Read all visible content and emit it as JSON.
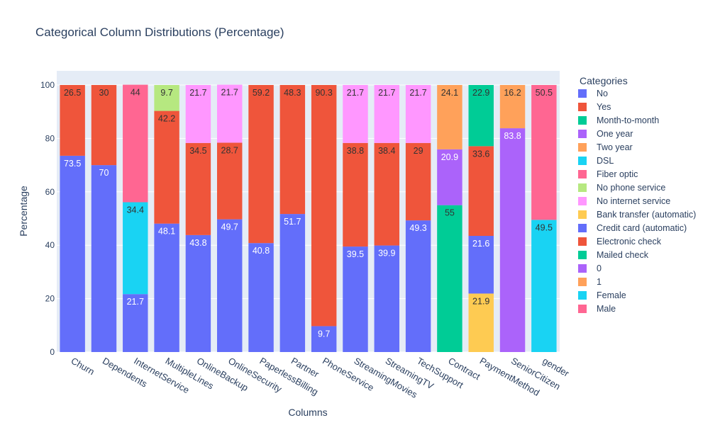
{
  "chart_data": {
    "type": "bar",
    "barmode": "stack",
    "title": "Categorical Column Distributions (Percentage)",
    "xlabel": "Columns",
    "ylabel": "Percentage",
    "ylim": [
      0,
      100
    ],
    "yticks": [
      0,
      20,
      40,
      60,
      80,
      100
    ],
    "grid": true,
    "legend": {
      "title": "Categories",
      "position": "right"
    },
    "categories": [
      "Churn",
      "Dependents",
      "InternetService",
      "MultipleLines",
      "OnlineBackup",
      "OnlineSecurity",
      "PaperlessBilling",
      "Partner",
      "PhoneService",
      "StreamingMovies",
      "StreamingTV",
      "TechSupport",
      "Contract",
      "PaymentMethod",
      "SeniorCitizen",
      "gender"
    ],
    "series": [
      {
        "name": "No",
        "color": "#636efa",
        "values": [
          73.5,
          70,
          21.7,
          48.1,
          43.8,
          49.7,
          40.8,
          51.7,
          9.7,
          39.5,
          39.9,
          49.3,
          null,
          null,
          null,
          null
        ],
        "labels": [
          "73.5",
          "70",
          "21.7",
          "48.1",
          "43.8",
          "49.7",
          "40.8",
          "51.7",
          "9.7",
          "39.5",
          "39.9",
          "49.3",
          null,
          null,
          null,
          null
        ]
      },
      {
        "name": "Yes",
        "color": "#ef553b",
        "values": [
          26.5,
          30,
          null,
          42.2,
          34.5,
          28.7,
          59.2,
          48.3,
          90.3,
          38.8,
          38.4,
          29,
          null,
          null,
          null,
          null
        ],
        "labels": [
          "26.5",
          "30",
          null,
          "42.2",
          "34.5",
          "28.7",
          "59.2",
          "48.3",
          "90.3",
          "38.8",
          "38.4",
          "29",
          null,
          null,
          null,
          null
        ]
      },
      {
        "name": "Month-to-month",
        "color": "#00cc96",
        "values": [
          null,
          null,
          null,
          null,
          null,
          null,
          null,
          null,
          null,
          null,
          null,
          null,
          55,
          null,
          null,
          null
        ],
        "labels": [
          null,
          null,
          null,
          null,
          null,
          null,
          null,
          null,
          null,
          null,
          null,
          null,
          "55",
          null,
          null,
          null
        ]
      },
      {
        "name": "One year",
        "color": "#ab63fa",
        "values": [
          null,
          null,
          null,
          null,
          null,
          null,
          null,
          null,
          null,
          null,
          null,
          null,
          20.9,
          null,
          null,
          null
        ],
        "labels": [
          null,
          null,
          null,
          null,
          null,
          null,
          null,
          null,
          null,
          null,
          null,
          null,
          "20.9",
          null,
          null,
          null
        ]
      },
      {
        "name": "Two year",
        "color": "#ffa15a",
        "values": [
          null,
          null,
          null,
          null,
          null,
          null,
          null,
          null,
          null,
          null,
          null,
          null,
          24.1,
          null,
          null,
          null
        ],
        "labels": [
          null,
          null,
          null,
          null,
          null,
          null,
          null,
          null,
          null,
          null,
          null,
          null,
          "24.1",
          null,
          null,
          null
        ]
      },
      {
        "name": "DSL",
        "color": "#19d3f3",
        "values": [
          null,
          null,
          34.4,
          null,
          null,
          null,
          null,
          null,
          null,
          null,
          null,
          null,
          null,
          null,
          null,
          null
        ],
        "labels": [
          null,
          null,
          "34.4",
          null,
          null,
          null,
          null,
          null,
          null,
          null,
          null,
          null,
          null,
          null,
          null,
          null
        ]
      },
      {
        "name": "Fiber optic",
        "color": "#ff6692",
        "values": [
          null,
          null,
          44,
          null,
          null,
          null,
          null,
          null,
          null,
          null,
          null,
          null,
          null,
          null,
          null,
          null
        ],
        "labels": [
          null,
          null,
          "44",
          null,
          null,
          null,
          null,
          null,
          null,
          null,
          null,
          null,
          null,
          null,
          null,
          null
        ]
      },
      {
        "name": "No phone service",
        "color": "#b6e880",
        "values": [
          null,
          null,
          null,
          9.7,
          null,
          null,
          null,
          null,
          null,
          null,
          null,
          null,
          null,
          null,
          null,
          null
        ],
        "labels": [
          null,
          null,
          null,
          "9.7",
          null,
          null,
          null,
          null,
          null,
          null,
          null,
          null,
          null,
          null,
          null,
          null
        ]
      },
      {
        "name": "No internet service",
        "color": "#ff97ff",
        "values": [
          null,
          null,
          null,
          null,
          21.7,
          21.7,
          null,
          null,
          null,
          21.7,
          21.7,
          21.7,
          null,
          null,
          null,
          null
        ],
        "labels": [
          null,
          null,
          null,
          null,
          "21.7",
          "21.7",
          null,
          null,
          null,
          "21.7",
          "21.7",
          "21.7",
          null,
          null,
          null,
          null
        ]
      },
      {
        "name": "Bank transfer (automatic)",
        "color": "#fecb52",
        "values": [
          null,
          null,
          null,
          null,
          null,
          null,
          null,
          null,
          null,
          null,
          null,
          null,
          null,
          21.9,
          null,
          null
        ],
        "labels": [
          null,
          null,
          null,
          null,
          null,
          null,
          null,
          null,
          null,
          null,
          null,
          null,
          null,
          "21.9",
          null,
          null
        ]
      },
      {
        "name": "Credit card (automatic)",
        "color": "#636efa",
        "values": [
          null,
          null,
          null,
          null,
          null,
          null,
          null,
          null,
          null,
          null,
          null,
          null,
          null,
          21.6,
          null,
          null
        ],
        "labels": [
          null,
          null,
          null,
          null,
          null,
          null,
          null,
          null,
          null,
          null,
          null,
          null,
          null,
          "21.6",
          null,
          null
        ]
      },
      {
        "name": "Electronic check",
        "color": "#ef553b",
        "values": [
          null,
          null,
          null,
          null,
          null,
          null,
          null,
          null,
          null,
          null,
          null,
          null,
          null,
          33.6,
          null,
          null
        ],
        "labels": [
          null,
          null,
          null,
          null,
          null,
          null,
          null,
          null,
          null,
          null,
          null,
          null,
          null,
          "33.6",
          null,
          null
        ]
      },
      {
        "name": "Mailed check",
        "color": "#00cc96",
        "values": [
          null,
          null,
          null,
          null,
          null,
          null,
          null,
          null,
          null,
          null,
          null,
          null,
          null,
          22.9,
          null,
          null
        ],
        "labels": [
          null,
          null,
          null,
          null,
          null,
          null,
          null,
          null,
          null,
          null,
          null,
          null,
          null,
          "22.9",
          null,
          null
        ]
      },
      {
        "name": "0",
        "color": "#ab63fa",
        "values": [
          null,
          null,
          null,
          null,
          null,
          null,
          null,
          null,
          null,
          null,
          null,
          null,
          null,
          null,
          83.8,
          null
        ],
        "labels": [
          null,
          null,
          null,
          null,
          null,
          null,
          null,
          null,
          null,
          null,
          null,
          null,
          null,
          null,
          "83.8",
          null
        ]
      },
      {
        "name": "1",
        "color": "#ffa15a",
        "values": [
          null,
          null,
          null,
          null,
          null,
          null,
          null,
          null,
          null,
          null,
          null,
          null,
          null,
          null,
          16.2,
          null
        ],
        "labels": [
          null,
          null,
          null,
          null,
          null,
          null,
          null,
          null,
          null,
          null,
          null,
          null,
          null,
          null,
          "16.2",
          null
        ]
      },
      {
        "name": "Female",
        "color": "#19d3f3",
        "values": [
          null,
          null,
          null,
          null,
          null,
          null,
          null,
          null,
          null,
          null,
          null,
          null,
          null,
          null,
          null,
          49.5
        ],
        "labels": [
          null,
          null,
          null,
          null,
          null,
          null,
          null,
          null,
          null,
          null,
          null,
          null,
          null,
          null,
          null,
          "49.5"
        ]
      },
      {
        "name": "Male",
        "color": "#ff6692",
        "values": [
          null,
          null,
          null,
          null,
          null,
          null,
          null,
          null,
          null,
          null,
          null,
          null,
          null,
          null,
          null,
          50.5
        ],
        "labels": [
          null,
          null,
          null,
          null,
          null,
          null,
          null,
          null,
          null,
          null,
          null,
          null,
          null,
          null,
          null,
          "50.5"
        ]
      }
    ]
  },
  "colors": {
    "plot_bg": "#e5ecf6",
    "paper_bg": "#ffffff",
    "text": "#2a3f5f",
    "grid": "#ffffff"
  }
}
